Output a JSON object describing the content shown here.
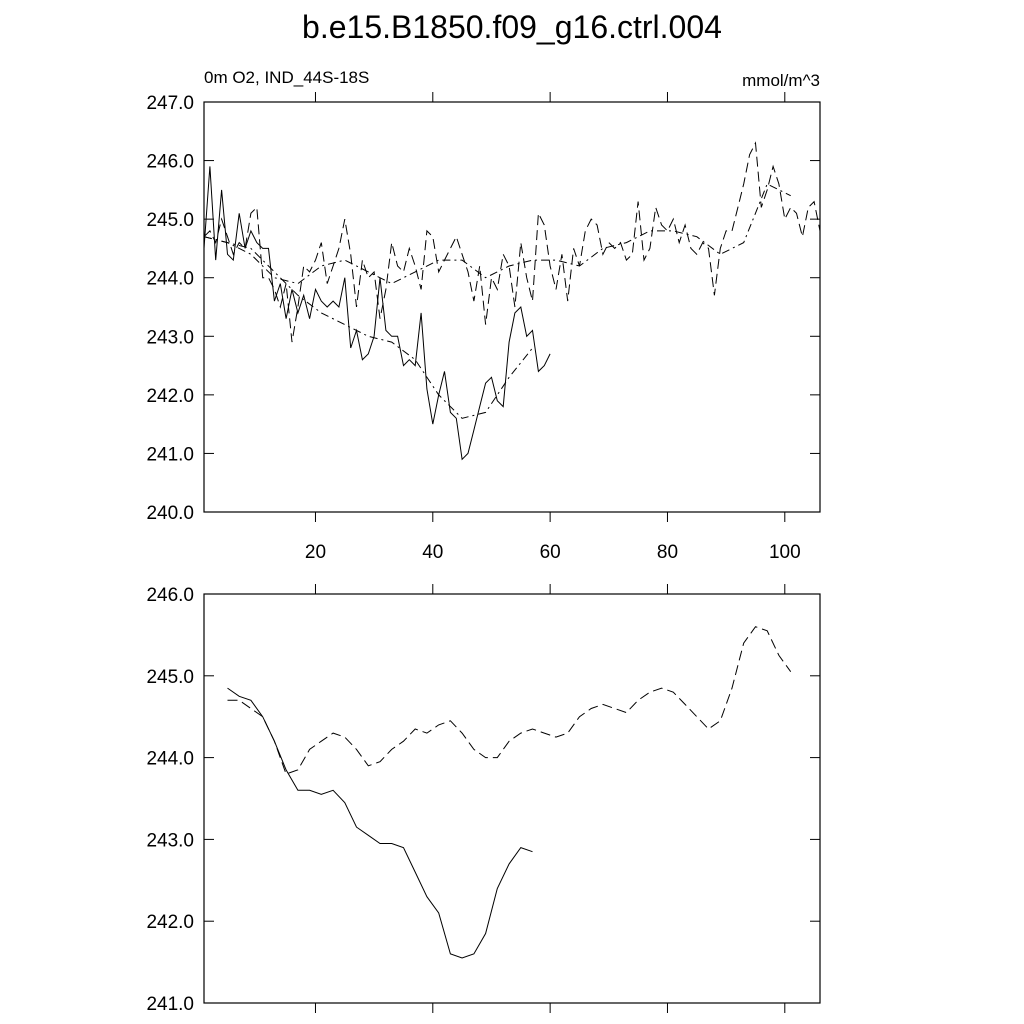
{
  "chart_data": [
    {
      "type": "line",
      "title": "b.e15.B1850.f09_g16.ctrl.004",
      "subtitle_left": "0m O2, IND_44S-18S",
      "subtitle_right": "mmol/m^3",
      "xlim": [
        1,
        106
      ],
      "xticks": [
        20,
        40,
        60,
        80,
        100
      ],
      "ylim": [
        240,
        247
      ],
      "yticks": [
        {
          "value": 240,
          "label": "240.0"
        },
        {
          "value": 241,
          "label": "241.0"
        },
        {
          "value": 242,
          "label": "242.0"
        },
        {
          "value": 243,
          "label": "243.0"
        },
        {
          "value": 244,
          "label": "244.0"
        },
        {
          "value": 245,
          "label": "245.0"
        },
        {
          "value": 246,
          "label": "246.0"
        },
        {
          "value": 247,
          "label": "247.0"
        }
      ],
      "series": [
        {
          "color": "#000000",
          "style": "solid",
          "x": [
            1,
            2,
            3,
            4,
            5,
            6,
            7,
            8,
            9,
            10,
            11,
            12,
            13,
            14,
            15,
            16,
            17,
            18,
            19,
            20,
            21,
            22,
            23,
            24,
            25,
            26,
            27,
            28,
            29,
            30,
            31,
            32,
            33,
            34,
            35,
            36,
            37,
            38,
            39,
            40,
            41,
            42,
            43,
            44,
            45,
            46,
            47,
            48,
            49,
            50,
            51,
            52,
            53,
            54,
            55,
            56,
            57,
            58,
            59,
            60
          ],
          "values": [
            244.5,
            245.9,
            244.3,
            245.5,
            244.4,
            244.3,
            245.1,
            244.5,
            244.8,
            244.6,
            244.5,
            244.5,
            243.6,
            243.9,
            243.3,
            243.8,
            243.4,
            243.7,
            243.3,
            243.8,
            243.6,
            243.5,
            243.6,
            243.5,
            244.0,
            242.8,
            243.1,
            242.6,
            242.7,
            243.0,
            244.0,
            243.1,
            243.0,
            243.0,
            242.5,
            242.6,
            242.5,
            243.4,
            242.1,
            241.5,
            242.0,
            242.4,
            241.7,
            241.6,
            240.9,
            241.0,
            241.4,
            241.8,
            242.2,
            242.3,
            241.9,
            241.8,
            242.9,
            243.4,
            243.5,
            243.0,
            243.1,
            242.4,
            242.5,
            242.7
          ]
        },
        {
          "color": "#000000",
          "style": "dashed",
          "x": [
            1,
            2,
            3,
            4,
            5,
            6,
            7,
            8,
            9,
            10,
            11,
            12,
            13,
            14,
            15,
            16,
            17,
            18,
            19,
            20,
            21,
            22,
            23,
            24,
            25,
            26,
            27,
            28,
            29,
            30,
            31,
            32,
            33,
            34,
            35,
            36,
            37,
            38,
            39,
            40,
            41,
            42,
            43,
            44,
            45,
            46,
            47,
            48,
            49,
            50,
            51,
            52,
            53,
            54,
            55,
            56,
            57,
            58,
            59,
            60,
            61,
            62,
            63,
            64,
            65,
            66,
            67,
            68,
            69,
            70,
            71,
            72,
            73,
            74,
            75,
            76,
            77,
            78,
            79,
            80,
            81,
            82,
            83,
            84,
            85,
            86,
            87,
            88,
            89,
            90,
            91,
            92,
            93,
            94,
            95,
            96,
            97,
            98,
            99,
            100,
            101,
            102,
            103,
            104,
            105,
            106
          ],
          "values": [
            244.7,
            244.8,
            244.6,
            245.0,
            244.7,
            244.4,
            244.6,
            244.5,
            245.1,
            245.2,
            244.0,
            244.0,
            243.8,
            243.5,
            243.9,
            242.9,
            243.5,
            244.2,
            244.1,
            244.3,
            244.6,
            243.9,
            244.2,
            244.5,
            245.0,
            244.4,
            243.5,
            244.3,
            244.0,
            244.1,
            243.3,
            243.8,
            244.6,
            244.2,
            244.1,
            244.5,
            244.2,
            243.8,
            244.8,
            244.7,
            244.1,
            244.3,
            244.5,
            244.7,
            244.4,
            244.1,
            243.6,
            244.2,
            243.2,
            244.0,
            243.8,
            244.4,
            244.2,
            243.5,
            244.6,
            244.0,
            243.6,
            245.1,
            244.9,
            244.2,
            243.8,
            244.4,
            243.6,
            244.5,
            244.2,
            244.8,
            245.0,
            244.9,
            244.4,
            244.6,
            244.5,
            244.6,
            244.3,
            244.4,
            245.3,
            244.3,
            244.5,
            245.2,
            244.9,
            244.8,
            245.0,
            244.6,
            244.9,
            244.5,
            244.4,
            244.6,
            244.5,
            243.7,
            244.5,
            244.8,
            244.8,
            245.2,
            245.6,
            246.1,
            246.3,
            245.2,
            245.5,
            245.9,
            245.6,
            245.0,
            245.2,
            245.1,
            244.7,
            245.2,
            245.3,
            244.8
          ]
        },
        {
          "color": "#000000",
          "style": "dashdot",
          "x": [
            1,
            5,
            9,
            13,
            17,
            21,
            25,
            29,
            33,
            37,
            41,
            45,
            49,
            53,
            57
          ],
          "values": [
            244.7,
            244.6,
            244.5,
            244.1,
            243.7,
            243.4,
            243.2,
            243.0,
            242.9,
            242.6,
            242.0,
            241.6,
            241.7,
            242.3,
            242.8
          ]
        },
        {
          "color": "#000000",
          "style": "dashdot",
          "x": [
            1,
            5,
            9,
            13,
            17,
            21,
            25,
            29,
            33,
            37,
            41,
            45,
            49,
            53,
            57,
            61,
            65,
            69,
            73,
            77,
            81,
            85,
            89,
            93,
            97,
            101
          ],
          "values": [
            244.7,
            244.6,
            244.4,
            244.0,
            243.9,
            244.2,
            244.3,
            244.1,
            243.9,
            244.1,
            244.3,
            244.3,
            244.0,
            244.2,
            244.3,
            244.3,
            244.2,
            244.5,
            244.6,
            244.8,
            244.8,
            244.7,
            244.4,
            244.6,
            245.6,
            245.4
          ]
        }
      ]
    },
    {
      "type": "line",
      "xlim": [
        1,
        106
      ],
      "xticks": [
        20,
        40,
        60,
        80,
        100
      ],
      "ylim": [
        241,
        246
      ],
      "yticks": [
        {
          "value": 241,
          "label": "241.0"
        },
        {
          "value": 242,
          "label": "242.0"
        },
        {
          "value": 243,
          "label": "243.0"
        },
        {
          "value": 244,
          "label": "244.0"
        },
        {
          "value": 245,
          "label": "245.0"
        },
        {
          "value": 246,
          "label": "246.0"
        }
      ],
      "series": [
        {
          "color": "#000000",
          "style": "solid",
          "x": [
            5,
            7,
            9,
            11,
            13,
            15,
            17,
            19,
            21,
            23,
            25,
            27,
            29,
            31,
            33,
            35,
            37,
            39,
            41,
            43,
            45,
            47,
            49,
            51,
            53,
            55,
            57
          ],
          "values": [
            244.85,
            244.75,
            244.7,
            244.5,
            244.2,
            243.85,
            243.6,
            243.6,
            243.55,
            243.6,
            243.45,
            243.15,
            243.05,
            242.95,
            242.95,
            242.9,
            242.6,
            242.3,
            242.1,
            241.6,
            241.55,
            241.6,
            241.85,
            242.4,
            242.7,
            242.9,
            242.85
          ]
        },
        {
          "color": "#000000",
          "style": "dashed",
          "x": [
            5,
            7,
            9,
            11,
            13,
            15,
            17,
            19,
            21,
            23,
            25,
            27,
            29,
            31,
            33,
            35,
            37,
            39,
            41,
            43,
            45,
            47,
            49,
            51,
            53,
            55,
            57,
            59,
            61,
            63,
            65,
            67,
            69,
            71,
            73,
            75,
            77,
            79,
            81,
            83,
            85,
            87,
            89,
            91,
            93,
            95,
            97,
            99,
            101
          ],
          "values": [
            244.7,
            244.7,
            244.6,
            244.5,
            244.2,
            243.8,
            243.85,
            244.1,
            244.2,
            244.3,
            244.25,
            244.1,
            243.9,
            243.95,
            244.1,
            244.2,
            244.35,
            244.3,
            244.4,
            244.45,
            244.3,
            244.1,
            244.0,
            244.0,
            244.2,
            244.3,
            244.35,
            244.3,
            244.25,
            244.3,
            244.5,
            244.6,
            244.65,
            244.6,
            244.55,
            244.7,
            244.8,
            244.85,
            244.8,
            244.65,
            244.5,
            244.35,
            244.45,
            244.85,
            245.4,
            245.6,
            245.55,
            245.25,
            245.05
          ]
        }
      ]
    }
  ]
}
